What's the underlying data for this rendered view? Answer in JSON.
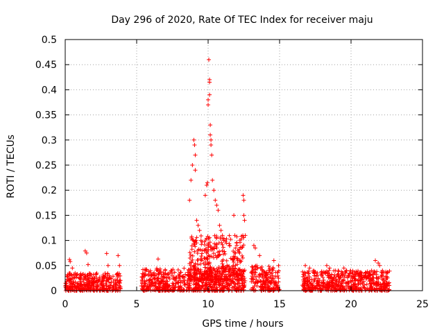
{
  "chart_data": {
    "type": "scatter",
    "title": "Day 296 of 2020, Rate Of TEC Index for receiver maju",
    "xlabel": "GPS time / hours",
    "ylabel": "ROTI / TECUs",
    "xlim": [
      0,
      25
    ],
    "ylim": [
      0,
      0.5
    ],
    "xticks": [
      0,
      5,
      10,
      15,
      20,
      25
    ],
    "xtick_labels": [
      "0",
      "5",
      "10",
      "15",
      "20",
      "25"
    ],
    "yticks": [
      0,
      0.05,
      0.1,
      0.15,
      0.2,
      0.25,
      0.3,
      0.35,
      0.4,
      0.45,
      0.5
    ],
    "ytick_labels": [
      "0",
      "0.05",
      "0.1",
      "0.15",
      "0.2",
      "0.25",
      "0.3",
      "0.35",
      "0.4",
      "0.45",
      "0.5"
    ],
    "grid": true,
    "marker": "+",
    "color": "#ff0000",
    "series": [
      {
        "name": "ROTI",
        "points": [
          [
            0.3,
            0.062
          ],
          [
            0.35,
            0.058
          ],
          [
            0.5,
            0.045
          ],
          [
            1.4,
            0.079
          ],
          [
            1.5,
            0.075
          ],
          [
            1.6,
            0.052
          ],
          [
            2.9,
            0.074
          ],
          [
            3.0,
            0.05
          ],
          [
            3.7,
            0.07
          ],
          [
            3.8,
            0.05
          ],
          [
            6.5,
            0.063
          ],
          [
            7.0,
            0.04
          ],
          [
            8.7,
            0.18
          ],
          [
            8.8,
            0.22
          ],
          [
            8.9,
            0.25
          ],
          [
            9.0,
            0.3
          ],
          [
            9.05,
            0.29
          ],
          [
            9.1,
            0.27
          ],
          [
            9.1,
            0.24
          ],
          [
            9.2,
            0.14
          ],
          [
            9.3,
            0.13
          ],
          [
            9.4,
            0.12
          ],
          [
            9.5,
            0.1
          ],
          [
            9.8,
            0.19
          ],
          [
            9.9,
            0.21
          ],
          [
            9.95,
            0.215
          ],
          [
            10.0,
            0.38
          ],
          [
            10.0,
            0.37
          ],
          [
            10.05,
            0.46
          ],
          [
            10.1,
            0.42
          ],
          [
            10.1,
            0.415
          ],
          [
            10.1,
            0.39
          ],
          [
            10.15,
            0.33
          ],
          [
            10.15,
            0.31
          ],
          [
            10.2,
            0.3
          ],
          [
            10.2,
            0.29
          ],
          [
            10.25,
            0.27
          ],
          [
            10.3,
            0.22
          ],
          [
            10.4,
            0.2
          ],
          [
            10.5,
            0.18
          ],
          [
            10.6,
            0.17
          ],
          [
            10.7,
            0.16
          ],
          [
            10.8,
            0.13
          ],
          [
            10.9,
            0.12
          ],
          [
            11.0,
            0.11
          ],
          [
            11.1,
            0.1
          ],
          [
            11.5,
            0.09
          ],
          [
            11.8,
            0.15
          ],
          [
            12.0,
            0.095
          ],
          [
            12.2,
            0.075
          ],
          [
            12.45,
            0.19
          ],
          [
            12.5,
            0.18
          ],
          [
            12.5,
            0.15
          ],
          [
            12.55,
            0.14
          ],
          [
            12.6,
            0.11
          ],
          [
            13.2,
            0.09
          ],
          [
            13.3,
            0.085
          ],
          [
            13.6,
            0.07
          ],
          [
            14.6,
            0.06
          ],
          [
            16.8,
            0.05
          ],
          [
            17.1,
            0.045
          ],
          [
            18.3,
            0.05
          ],
          [
            18.5,
            0.045
          ],
          [
            19.1,
            0.04
          ],
          [
            19.5,
            0.045
          ],
          [
            21.7,
            0.06
          ],
          [
            21.9,
            0.055
          ],
          [
            22.0,
            0.05
          ],
          [
            22.2,
            0.04
          ],
          [
            22.5,
            0.035
          ]
        ],
        "clusters": [
          {
            "x_range": [
              0.0,
              3.9
            ],
            "y_range": [
              0.0,
              0.035
            ]
          },
          {
            "x_range": [
              5.3,
              12.6
            ],
            "y_range": [
              0.0,
              0.045
            ]
          },
          {
            "x_range": [
              8.7,
              12.5
            ],
            "y_range": [
              0.02,
              0.11
            ]
          },
          {
            "x_range": [
              13.0,
              15.0
            ],
            "y_range": [
              0.0,
              0.05
            ]
          },
          {
            "x_range": [
              16.6,
              22.7
            ],
            "y_range": [
              0.0,
              0.04
            ]
          }
        ]
      }
    ]
  }
}
